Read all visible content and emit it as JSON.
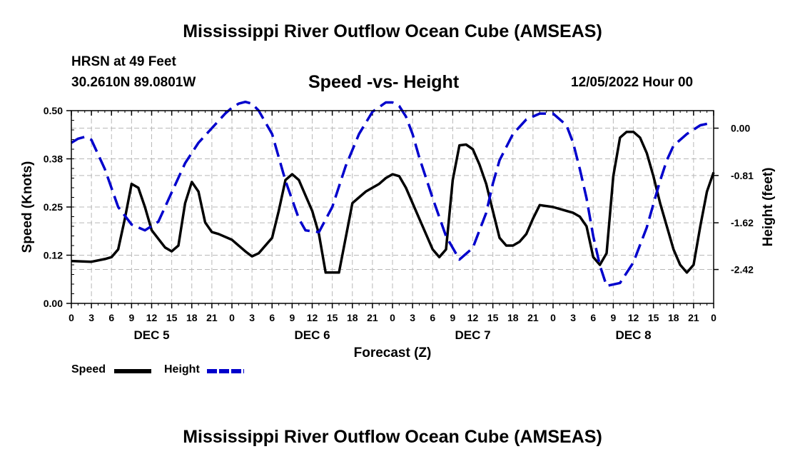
{
  "header": {
    "title": "Mississippi River Outflow Ocean Cube (AMSEAS)",
    "station": "HRSN at 49 Feet",
    "coords": "30.2610N  89.0801W",
    "subtitle": "Speed -vs- Height",
    "datetime": "12/05/2022 Hour 00"
  },
  "footer": {
    "title": "Mississippi River Outflow Ocean Cube (AMSEAS)"
  },
  "legend": {
    "speed_label": "Speed",
    "height_label": "Height",
    "speed_color": "#000000",
    "height_color": "#0000cc"
  },
  "chart_data": {
    "type": "line",
    "title": "Speed -vs- Height",
    "xlabel": "Forecast (Z)",
    "ylabel_left": "Speed (Knots)",
    "ylabel_right": "Height (feet)",
    "xlim": [
      0,
      96
    ],
    "ylim_left": [
      0,
      0.5
    ],
    "ylim_right": [
      -3.0,
      0.3
    ],
    "x_tick_labels": [
      "0",
      "3",
      "6",
      "9",
      "12",
      "15",
      "18",
      "21",
      "0",
      "3",
      "6",
      "9",
      "12",
      "15",
      "18",
      "21",
      "0",
      "3",
      "6",
      "9",
      "12",
      "15",
      "18",
      "21",
      "0",
      "3",
      "6",
      "9",
      "12",
      "15",
      "18",
      "21",
      "0"
    ],
    "left_tick_labels": [
      "0.00",
      "0.12",
      "0.25",
      "0.38",
      "0.50"
    ],
    "left_tick_values": [
      0,
      0.125,
      0.25,
      0.375,
      0.5
    ],
    "right_tick_labels": [
      "0.00",
      "-0.81",
      "-1.62",
      "-2.42"
    ],
    "right_tick_values": [
      0.0,
      -0.81,
      -1.62,
      -2.42
    ],
    "day_labels": [
      {
        "label": "DEC 5",
        "hour": 12
      },
      {
        "label": "DEC 6",
        "hour": 36
      },
      {
        "label": "DEC 7",
        "hour": 60
      },
      {
        "label": "DEC 8",
        "hour": 84
      }
    ],
    "series": [
      {
        "name": "Speed",
        "axis": "left",
        "color": "#000000",
        "dash": "solid",
        "x": [
          0,
          3,
          5,
          6,
          7,
          8,
          9,
          10,
          11,
          12,
          14,
          15,
          16,
          17,
          18,
          19,
          20,
          21,
          22,
          24,
          26,
          27,
          28,
          30,
          31,
          32,
          33,
          34,
          35,
          36,
          37,
          38,
          40,
          42,
          43,
          44,
          45,
          46,
          47,
          48,
          49,
          50,
          52,
          54,
          55,
          56,
          57,
          58,
          59,
          60,
          61,
          62,
          63,
          64,
          65,
          66,
          67,
          68,
          69,
          70,
          72,
          74,
          75,
          76,
          77,
          78,
          79,
          80,
          81,
          82,
          83,
          84,
          85,
          86,
          87,
          88,
          89,
          90,
          91,
          92,
          93,
          94,
          95,
          96
        ],
        "values": [
          0.11,
          0.108,
          0.115,
          0.12,
          0.14,
          0.22,
          0.31,
          0.3,
          0.25,
          0.19,
          0.145,
          0.135,
          0.15,
          0.26,
          0.315,
          0.29,
          0.21,
          0.185,
          0.18,
          0.165,
          0.135,
          0.122,
          0.13,
          0.17,
          0.24,
          0.32,
          0.335,
          0.32,
          0.28,
          0.24,
          0.18,
          0.08,
          0.08,
          0.26,
          0.275,
          0.29,
          0.3,
          0.31,
          0.325,
          0.335,
          0.33,
          0.3,
          0.22,
          0.14,
          0.12,
          0.14,
          0.32,
          0.41,
          0.412,
          0.4,
          0.36,
          0.31,
          0.24,
          0.17,
          0.15,
          0.15,
          0.16,
          0.18,
          0.22,
          0.255,
          0.25,
          0.24,
          0.235,
          0.225,
          0.2,
          0.12,
          0.1,
          0.13,
          0.33,
          0.43,
          0.445,
          0.445,
          0.43,
          0.39,
          0.33,
          0.26,
          0.2,
          0.14,
          0.1,
          0.08,
          0.1,
          0.2,
          0.29,
          0.34
        ]
      },
      {
        "name": "Height",
        "axis": "right",
        "color": "#0000cc",
        "dash": "dashed",
        "x": [
          0,
          1,
          2,
          3,
          5,
          7,
          9,
          11,
          13,
          14,
          15,
          17,
          19,
          21,
          23,
          24,
          25,
          26,
          27,
          28,
          30,
          32,
          34,
          35,
          37,
          39,
          41,
          43,
          45,
          47,
          48,
          49,
          50,
          51,
          52,
          54,
          56,
          58,
          60,
          61,
          62,
          63,
          64,
          66,
          68,
          70,
          72,
          74,
          75,
          76,
          77,
          78,
          79,
          80,
          82,
          84,
          86,
          87,
          88,
          89,
          90,
          92,
          94,
          96
        ],
        "values": [
          -0.25,
          -0.18,
          -0.15,
          -0.2,
          -0.7,
          -1.35,
          -1.65,
          -1.75,
          -1.6,
          -1.35,
          -1.1,
          -0.6,
          -0.25,
          0.0,
          0.25,
          0.35,
          0.42,
          0.45,
          0.42,
          0.3,
          -0.1,
          -0.9,
          -1.55,
          -1.75,
          -1.78,
          -1.35,
          -0.65,
          -0.1,
          0.28,
          0.44,
          0.44,
          0.38,
          0.2,
          -0.1,
          -0.5,
          -1.2,
          -1.85,
          -2.25,
          -2.05,
          -1.75,
          -1.45,
          -0.95,
          -0.55,
          -0.1,
          0.15,
          0.25,
          0.25,
          0.05,
          -0.25,
          -0.7,
          -1.2,
          -1.85,
          -2.35,
          -2.7,
          -2.65,
          -2.3,
          -1.7,
          -1.3,
          -0.9,
          -0.55,
          -0.3,
          -0.1,
          0.05,
          0.1
        ]
      }
    ]
  }
}
